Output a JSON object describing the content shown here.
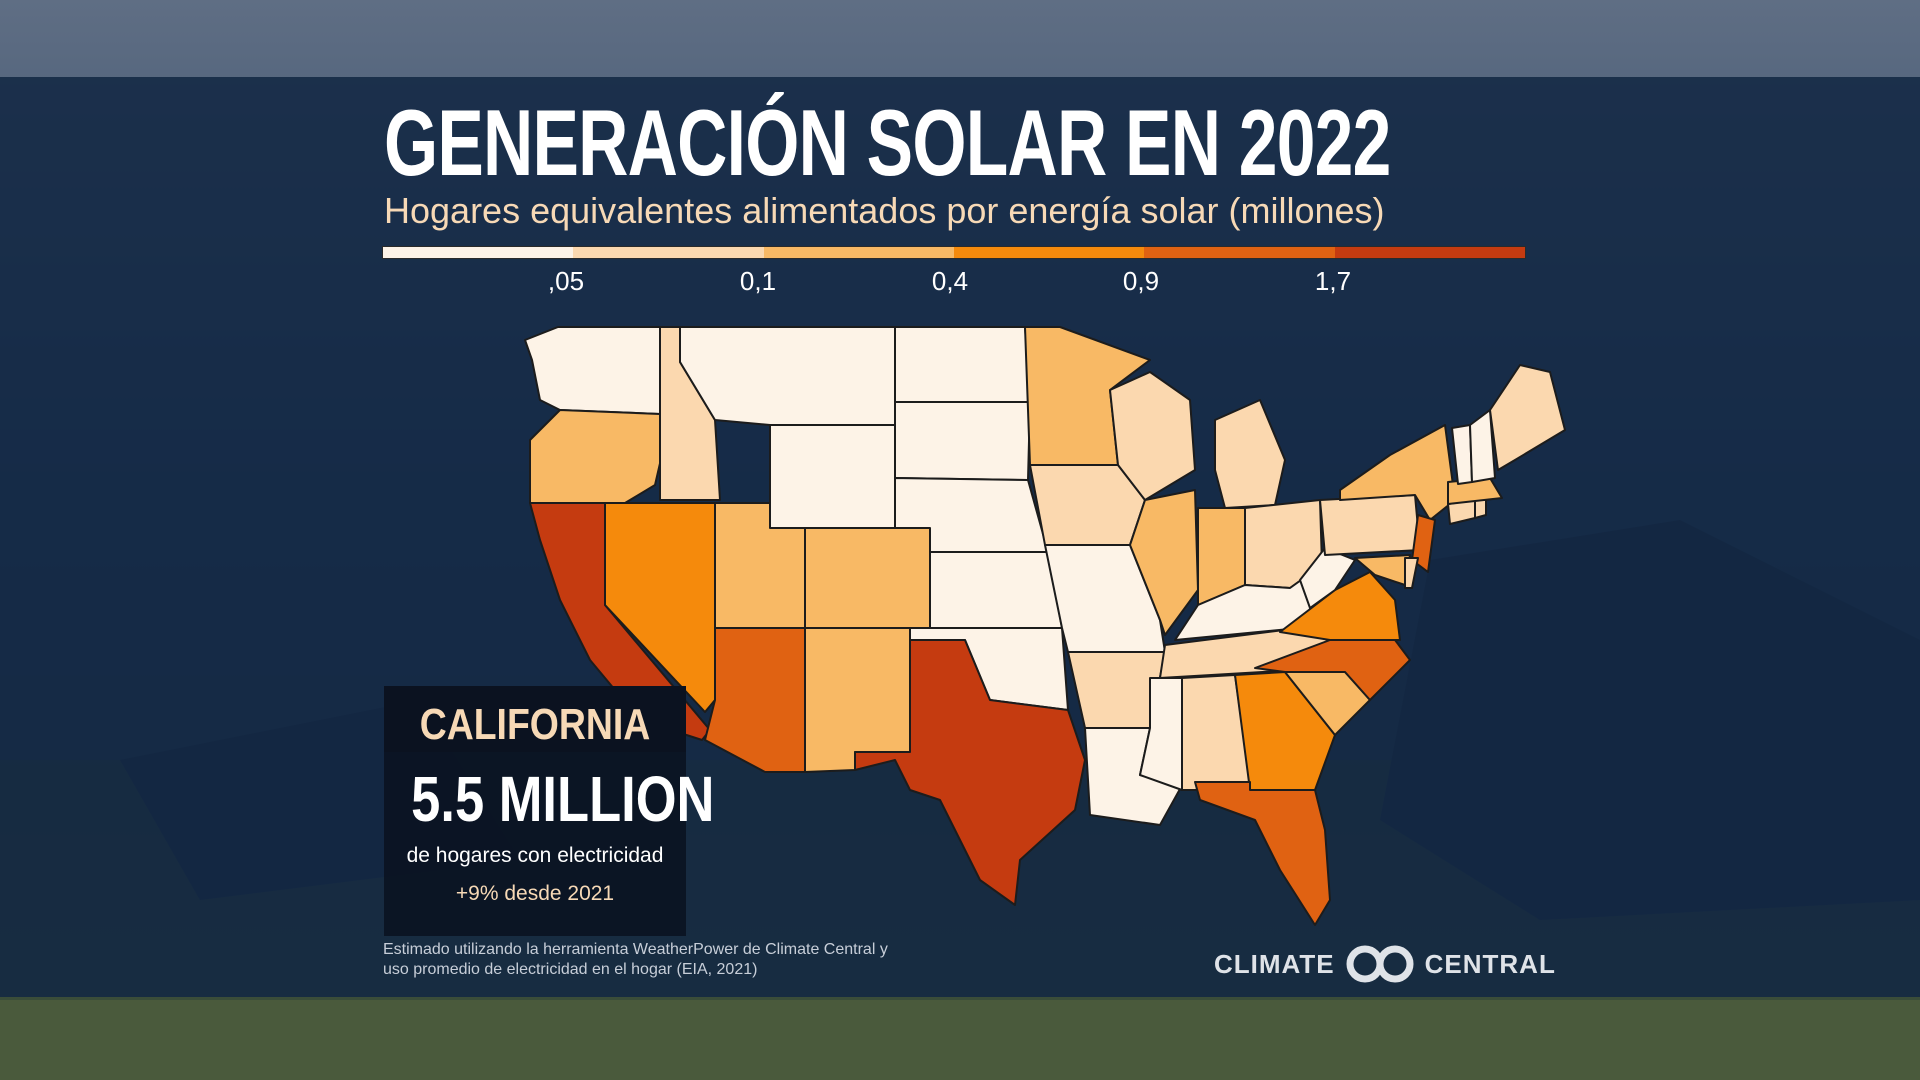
{
  "title": "GENERACIÓN SOLAR EN 2022",
  "subtitle": "Hogares equivalentes alimentados por energía solar (millones)",
  "legend": {
    "colors": [
      "#fdf3e7",
      "#fbd8af",
      "#f8b965",
      "#f58a0c",
      "#e06212",
      "#c53b10"
    ],
    "ticks": [
      ",05",
      "0,1",
      "0,4",
      "0,9",
      "1,7"
    ]
  },
  "highlight": {
    "state": "CALIFORNIA",
    "value": "5.5 MILLION",
    "description": "de hogares con electricidad",
    "change": "+9% desde 2021"
  },
  "source_note": {
    "line1": "Estimado utilizando la herramienta WeatherPower de Climate Central y",
    "line2": "uso promedio de electricidad en el hogar (EIA, 2021)"
  },
  "logo": {
    "left": "CLIMATE",
    "right": "CENTRAL"
  },
  "map_data": {
    "class_colors": [
      "#fdf3e7",
      "#fbd8af",
      "#f8b965",
      "#f58a0c",
      "#e06212",
      "#c53b10"
    ],
    "states": [
      {
        "id": "WA",
        "class": 0
      },
      {
        "id": "OR",
        "class": 2
      },
      {
        "id": "CA",
        "class": 5
      },
      {
        "id": "NV",
        "class": 3
      },
      {
        "id": "ID",
        "class": 1
      },
      {
        "id": "MT",
        "class": 0
      },
      {
        "id": "WY",
        "class": 0
      },
      {
        "id": "UT",
        "class": 2
      },
      {
        "id": "AZ",
        "class": 4
      },
      {
        "id": "CO",
        "class": 2
      },
      {
        "id": "NM",
        "class": 2
      },
      {
        "id": "ND",
        "class": 0
      },
      {
        "id": "SD",
        "class": 0
      },
      {
        "id": "NE",
        "class": 0
      },
      {
        "id": "KS",
        "class": 0
      },
      {
        "id": "OK",
        "class": 0
      },
      {
        "id": "TX",
        "class": 5
      },
      {
        "id": "MN",
        "class": 2
      },
      {
        "id": "IA",
        "class": 1
      },
      {
        "id": "MO",
        "class": 0
      },
      {
        "id": "AR",
        "class": 1
      },
      {
        "id": "LA",
        "class": 0
      },
      {
        "id": "WI",
        "class": 1
      },
      {
        "id": "IL",
        "class": 2
      },
      {
        "id": "MI",
        "class": 1
      },
      {
        "id": "IN",
        "class": 2
      },
      {
        "id": "OH",
        "class": 1
      },
      {
        "id": "KY",
        "class": 0
      },
      {
        "id": "TN",
        "class": 1
      },
      {
        "id": "MS",
        "class": 0
      },
      {
        "id": "AL",
        "class": 1
      },
      {
        "id": "GA",
        "class": 3
      },
      {
        "id": "FL",
        "class": 4
      },
      {
        "id": "SC",
        "class": 2
      },
      {
        "id": "NC",
        "class": 4
      },
      {
        "id": "VA",
        "class": 3
      },
      {
        "id": "WV",
        "class": 0
      },
      {
        "id": "PA",
        "class": 1
      },
      {
        "id": "NY",
        "class": 2
      },
      {
        "id": "NJ",
        "class": 4
      },
      {
        "id": "MD",
        "class": 2
      },
      {
        "id": "DE",
        "class": 1
      },
      {
        "id": "CT",
        "class": 1
      },
      {
        "id": "RI",
        "class": 1
      },
      {
        "id": "MA",
        "class": 2
      },
      {
        "id": "VT",
        "class": 0
      },
      {
        "id": "NH",
        "class": 0
      },
      {
        "id": "ME",
        "class": 1
      }
    ]
  }
}
